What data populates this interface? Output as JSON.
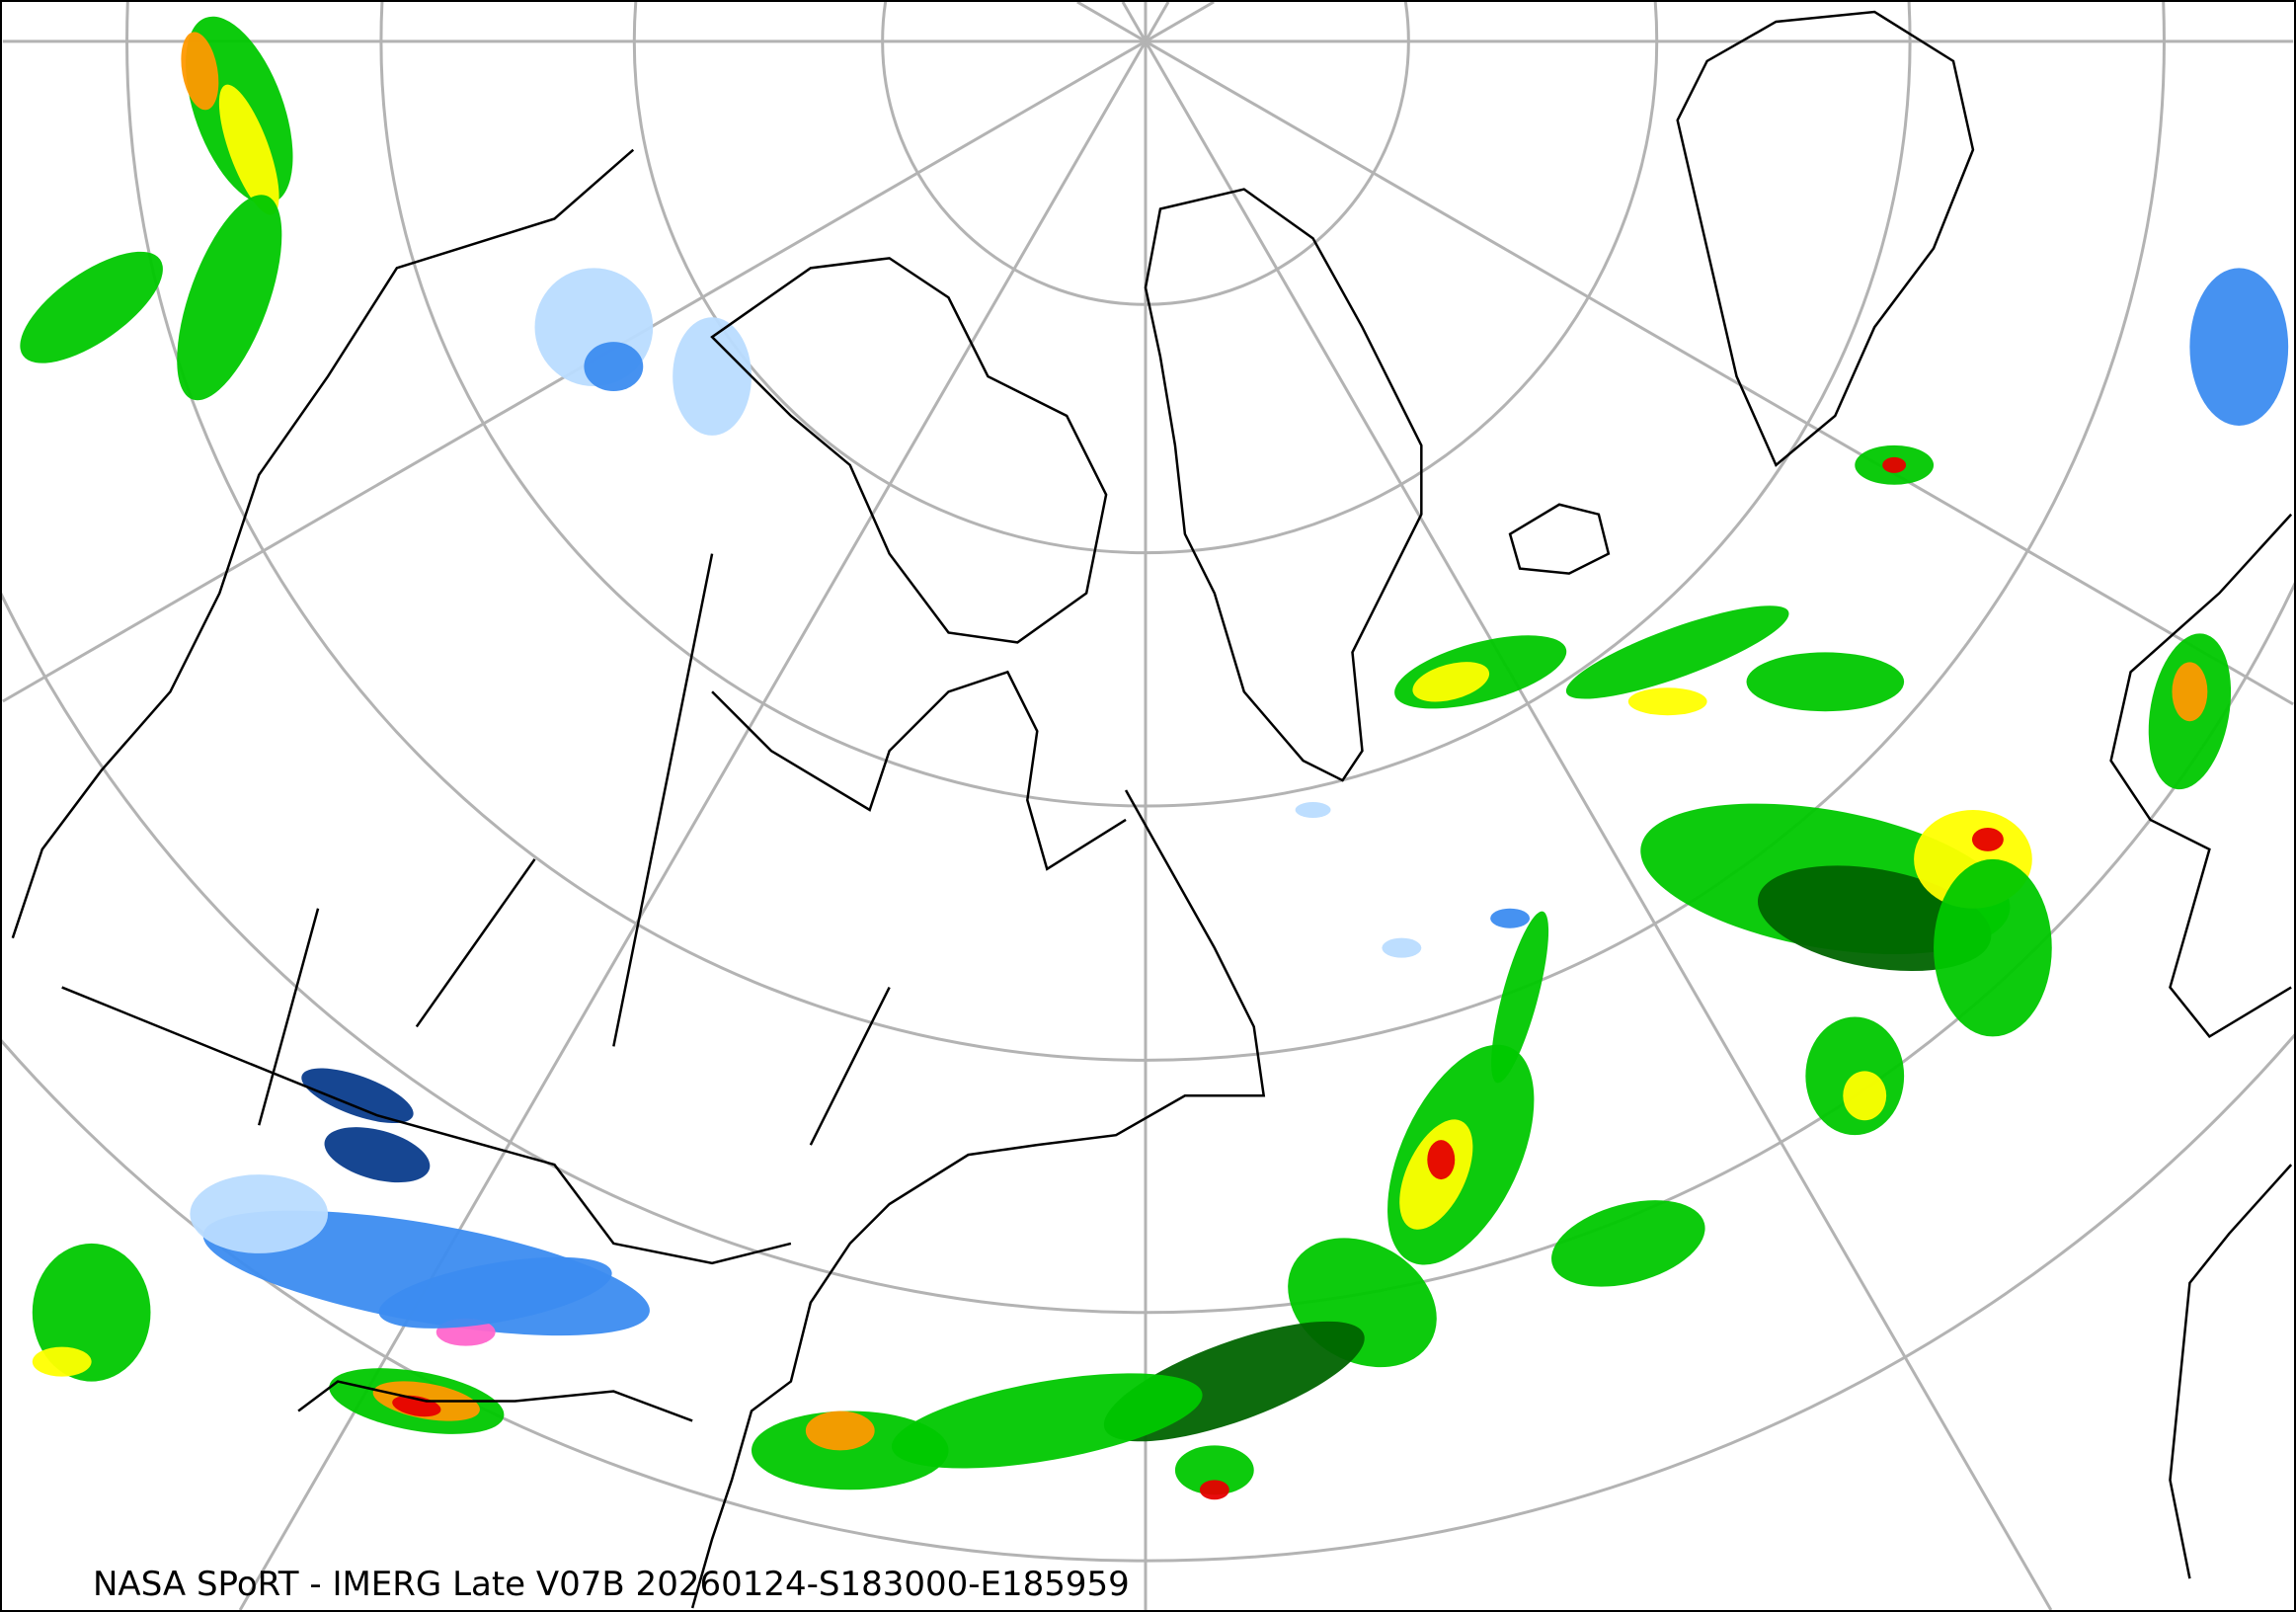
{
  "caption": "NASA SPoRT - IMERG Late V07B 20260124-S183000-E185959",
  "map": {
    "projection": "polar stereographic (North Pole)",
    "graticule_color": "#b3b3b3",
    "coastline_color": "#000000",
    "precip_colors": {
      "rain_light": "#00c800",
      "rain_dark": "#006400",
      "rain_moderate": "#ffff00",
      "rain_heavy": "#ff9900",
      "rain_very_heavy": "#e60000",
      "snow_light": "#b9dcff",
      "snow_moderate": "#3c8cf0",
      "snow_heavy": "#0a3c8c",
      "mixed": "#ff66cc"
    }
  }
}
